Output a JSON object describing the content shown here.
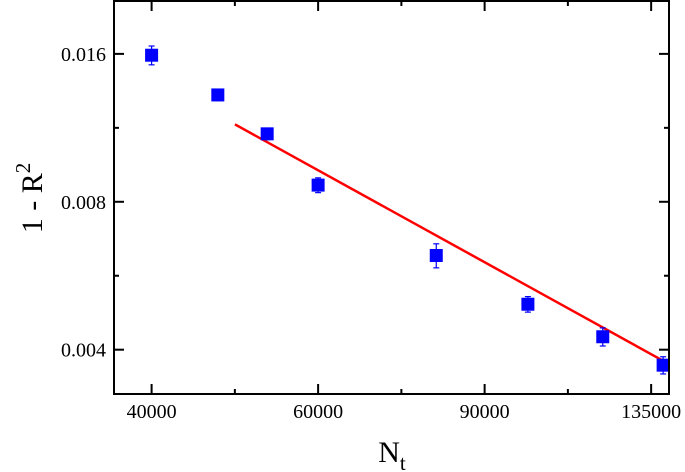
{
  "chart_data": {
    "type": "scatter",
    "xlabel": "N",
    "xlabel_sub": "t",
    "ylabel": "1 - R",
    "ylabel_sup": "2",
    "x_scale": "log",
    "y_scale": "log",
    "xlim": [
      36500,
      141000
    ],
    "ylim": [
      0.00325,
      0.0205
    ],
    "xticks": [
      40000,
      60000,
      90000,
      135000
    ],
    "xtick_labels": [
      "40000",
      "60000",
      "90000",
      "135000"
    ],
    "yticks": [
      0.004,
      0.008,
      0.016
    ],
    "ytick_labels": [
      "0.004",
      "0.008",
      "0.016"
    ],
    "series": [
      {
        "marker": "square",
        "color": "#0000ff",
        "points": [
          {
            "x": 40000,
            "y": 0.0159,
            "err": 0.0007
          },
          {
            "x": 47000,
            "y": 0.0132,
            "err": 0.00035
          },
          {
            "x": 53000,
            "y": 0.011,
            "err": 0.0003
          },
          {
            "x": 60000,
            "y": 0.00865,
            "err": 0.0003
          },
          {
            "x": 80000,
            "y": 0.00622,
            "err": 0.00035
          },
          {
            "x": 100000,
            "y": 0.00495,
            "err": 0.00018
          },
          {
            "x": 120000,
            "y": 0.00425,
            "err": 0.00018
          },
          {
            "x": 139000,
            "y": 0.00372,
            "err": 0.00015
          }
        ]
      }
    ],
    "fit_line": {
      "color": "#ff0000",
      "from": {
        "x": 49000,
        "y": 0.0115
      },
      "to": {
        "x": 141000,
        "y": 0.00374
      }
    }
  }
}
